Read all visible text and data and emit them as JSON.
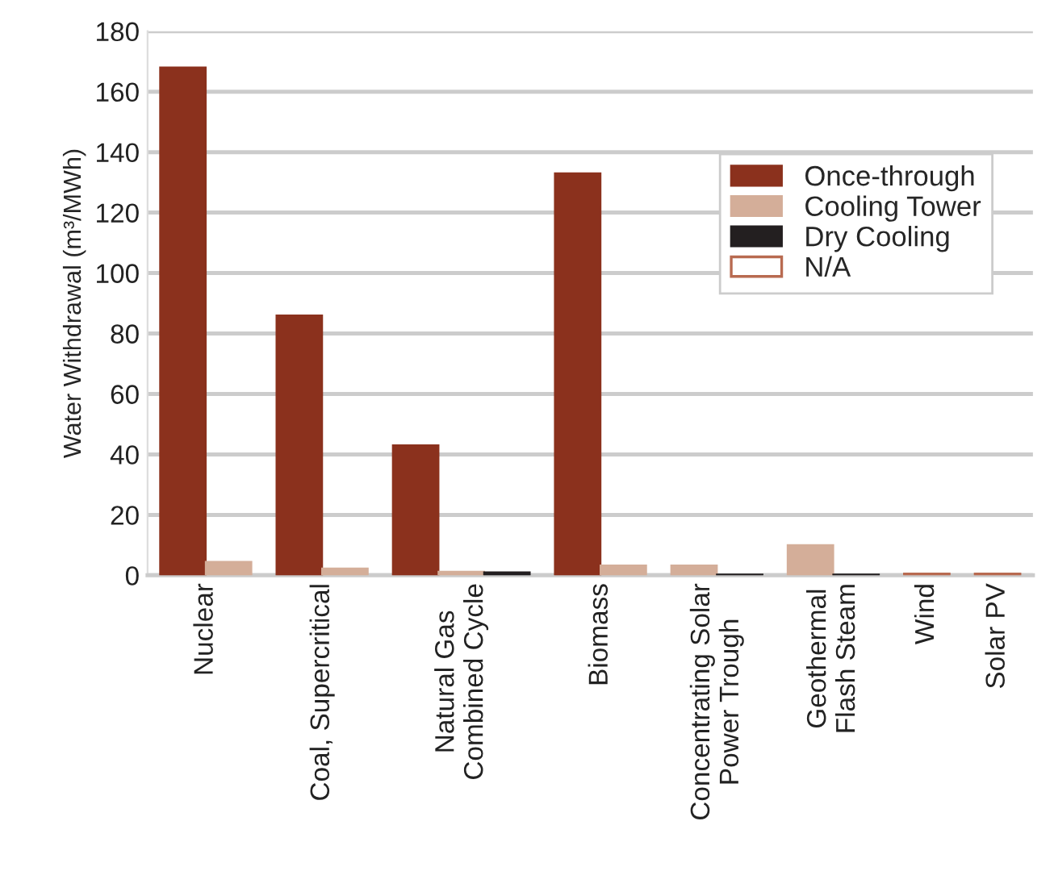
{
  "chart_data": {
    "type": "bar",
    "ylabel": "Water Withdrawal (m³/MWh)",
    "categories": [
      "Nuclear",
      "Coal, Supercritical",
      "Natural Gas\nCombined Cycle",
      "Biomass",
      "Concentrating Solar\nPower Trough",
      "Geothermal\nFlash Steam",
      "Wind",
      "Solar PV"
    ],
    "series": [
      {
        "name": "Once-through",
        "color": "#8b311d",
        "values": [
          168,
          86,
          43,
          133,
          null,
          null,
          null,
          null
        ]
      },
      {
        "name": "Cooling Tower",
        "color": "#d4ae99",
        "values": [
          4.5,
          2.3,
          1.2,
          3.3,
          3.3,
          10,
          null,
          null
        ]
      },
      {
        "name": "Dry Cooling",
        "color": "#231f20",
        "values": [
          null,
          null,
          1.0,
          null,
          0.3,
          0.3,
          null,
          null
        ]
      },
      {
        "name": "N/A",
        "color": "#b86a50",
        "values": [
          null,
          null,
          null,
          null,
          null,
          null,
          0.6,
          0.6
        ]
      }
    ],
    "ylim": [
      0,
      180
    ],
    "yticks": [
      0,
      20,
      40,
      60,
      80,
      100,
      120,
      140,
      160,
      180
    ],
    "grid": "y",
    "legend": "top right"
  }
}
